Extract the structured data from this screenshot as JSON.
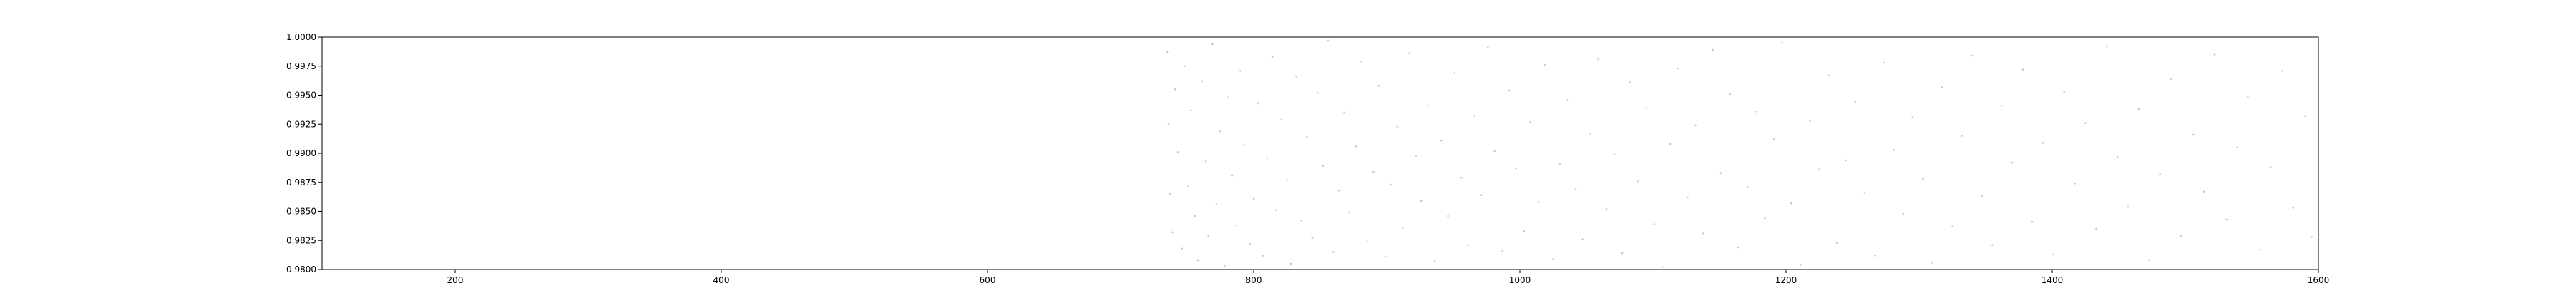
{
  "chart_data": {
    "type": "scatter",
    "title": "",
    "xlabel": "",
    "ylabel": "",
    "xlim": [
      100,
      1600
    ],
    "ylim": [
      0.98,
      1.0
    ],
    "x_ticks": [
      200,
      400,
      600,
      800,
      1000,
      1200,
      1400,
      1600
    ],
    "x_tick_labels": [
      "200",
      "400",
      "600",
      "800",
      "1000",
      "1200",
      "1400",
      "1600"
    ],
    "y_ticks": [
      0.98,
      0.9825,
      0.985,
      0.9875,
      0.99,
      0.9925,
      0.995,
      0.9975,
      1.0
    ],
    "y_tick_labels": [
      "0.9800",
      "0.9825",
      "0.9850",
      "0.9875",
      "0.9900",
      "0.9925",
      "0.9950",
      "0.9975",
      "1.0000"
    ],
    "grid": false,
    "legend": "none",
    "point_color": "#c8c8c8",
    "series": [
      {
        "points": [
          [
            735,
            0.9987
          ],
          [
            736,
            0.9925
          ],
          [
            737,
            0.9865
          ],
          [
            739,
            0.9832
          ],
          [
            741,
            0.9955
          ],
          [
            743,
            0.9901
          ],
          [
            746,
            0.9818
          ],
          [
            748,
            0.9975
          ],
          [
            751,
            0.9872
          ],
          [
            753,
            0.9937
          ],
          [
            756,
            0.9846
          ],
          [
            758,
            0.9808
          ],
          [
            761,
            0.9962
          ],
          [
            764,
            0.9893
          ],
          [
            766,
            0.9829
          ],
          [
            769,
            0.9994
          ],
          [
            772,
            0.9856
          ],
          [
            775,
            0.9919
          ],
          [
            778,
            0.9803
          ],
          [
            781,
            0.9948
          ],
          [
            784,
            0.9881
          ],
          [
            787,
            0.9838
          ],
          [
            790,
            0.9971
          ],
          [
            793,
            0.9907
          ],
          [
            797,
            0.9822
          ],
          [
            800,
            0.9861
          ],
          [
            803,
            0.9943
          ],
          [
            807,
            0.9812
          ],
          [
            810,
            0.9896
          ],
          [
            814,
            0.9983
          ],
          [
            817,
            0.9851
          ],
          [
            821,
            0.9929
          ],
          [
            825,
            0.9877
          ],
          [
            828,
            0.9805
          ],
          [
            832,
            0.9966
          ],
          [
            836,
            0.9842
          ],
          [
            840,
            0.9914
          ],
          [
            844,
            0.9827
          ],
          [
            848,
            0.9952
          ],
          [
            852,
            0.9889
          ],
          [
            856,
            0.9997
          ],
          [
            860,
            0.9815
          ],
          [
            864,
            0.9868
          ],
          [
            868,
            0.9935
          ],
          [
            872,
            0.9849
          ],
          [
            877,
            0.9906
          ],
          [
            881,
            0.9979
          ],
          [
            885,
            0.9824
          ],
          [
            890,
            0.9884
          ],
          [
            894,
            0.9958
          ],
          [
            899,
            0.9811
          ],
          [
            903,
            0.9873
          ],
          [
            908,
            0.9923
          ],
          [
            912,
            0.9836
          ],
          [
            917,
            0.9986
          ],
          [
            922,
            0.9898
          ],
          [
            926,
            0.9859
          ],
          [
            931,
            0.9941
          ],
          [
            936,
            0.9807
          ],
          [
            941,
            0.9911
          ],
          [
            946,
            0.9846
          ],
          [
            951,
            0.9969
          ],
          [
            956,
            0.9879
          ],
          [
            961,
            0.9821
          ],
          [
            966,
            0.9932
          ],
          [
            971,
            0.9864
          ],
          [
            976,
            0.9991
          ],
          [
            981,
            0.9902
          ],
          [
            987,
            0.9816
          ],
          [
            992,
            0.9954
          ],
          [
            997,
            0.9887
          ],
          [
            1003,
            0.9833
          ],
          [
            1008,
            0.9927
          ],
          [
            1014,
            0.9858
          ],
          [
            1019,
            0.9976
          ],
          [
            1025,
            0.9809
          ],
          [
            1030,
            0.9891
          ],
          [
            1036,
            0.9946
          ],
          [
            1042,
            0.9869
          ],
          [
            1047,
            0.9826
          ],
          [
            1053,
            0.9917
          ],
          [
            1059,
            0.9981
          ],
          [
            1065,
            0.9852
          ],
          [
            1071,
            0.9899
          ],
          [
            1077,
            0.9814
          ],
          [
            1083,
            0.9961
          ],
          [
            1089,
            0.9876
          ],
          [
            1095,
            0.9939
          ],
          [
            1101,
            0.9839
          ],
          [
            1107,
            0.9802
          ],
          [
            1113,
            0.9908
          ],
          [
            1119,
            0.9973
          ],
          [
            1126,
            0.9862
          ],
          [
            1132,
            0.9924
          ],
          [
            1138,
            0.9831
          ],
          [
            1145,
            0.9989
          ],
          [
            1151,
            0.9883
          ],
          [
            1158,
            0.9951
          ],
          [
            1164,
            0.9819
          ],
          [
            1171,
            0.9871
          ],
          [
            1177,
            0.9936
          ],
          [
            1184,
            0.9844
          ],
          [
            1191,
            0.9912
          ],
          [
            1197,
            0.9995
          ],
          [
            1204,
            0.9857
          ],
          [
            1211,
            0.9804
          ],
          [
            1218,
            0.9928
          ],
          [
            1225,
            0.9886
          ],
          [
            1232,
            0.9967
          ],
          [
            1238,
            0.9823
          ],
          [
            1245,
            0.9894
          ],
          [
            1252,
            0.9944
          ],
          [
            1259,
            0.9866
          ],
          [
            1267,
            0.9812
          ],
          [
            1274,
            0.9978
          ],
          [
            1281,
            0.9903
          ],
          [
            1288,
            0.9848
          ],
          [
            1295,
            0.9931
          ],
          [
            1303,
            0.9878
          ],
          [
            1310,
            0.9806
          ],
          [
            1317,
            0.9957
          ],
          [
            1325,
            0.9837
          ],
          [
            1332,
            0.9915
          ],
          [
            1340,
            0.9984
          ],
          [
            1347,
            0.9863
          ],
          [
            1355,
            0.9821
          ],
          [
            1362,
            0.9941
          ],
          [
            1370,
            0.9892
          ],
          [
            1378,
            0.9972
          ],
          [
            1385,
            0.9841
          ],
          [
            1393,
            0.9909
          ],
          [
            1401,
            0.9813
          ],
          [
            1409,
            0.9953
          ],
          [
            1417,
            0.9874
          ],
          [
            1425,
            0.9926
          ],
          [
            1433,
            0.9835
          ],
          [
            1441,
            0.9992
          ],
          [
            1449,
            0.9897
          ],
          [
            1457,
            0.9854
          ],
          [
            1465,
            0.9938
          ],
          [
            1473,
            0.9808
          ],
          [
            1481,
            0.9882
          ],
          [
            1489,
            0.9964
          ],
          [
            1497,
            0.9829
          ],
          [
            1506,
            0.9916
          ],
          [
            1514,
            0.9867
          ],
          [
            1522,
            0.9985
          ],
          [
            1531,
            0.9843
          ],
          [
            1539,
            0.9905
          ],
          [
            1547,
            0.9949
          ],
          [
            1556,
            0.9817
          ],
          [
            1564,
            0.9888
          ],
          [
            1573,
            0.9971
          ],
          [
            1581,
            0.9853
          ],
          [
            1590,
            0.9932
          ],
          [
            1595,
            0.9828
          ]
        ]
      }
    ]
  }
}
